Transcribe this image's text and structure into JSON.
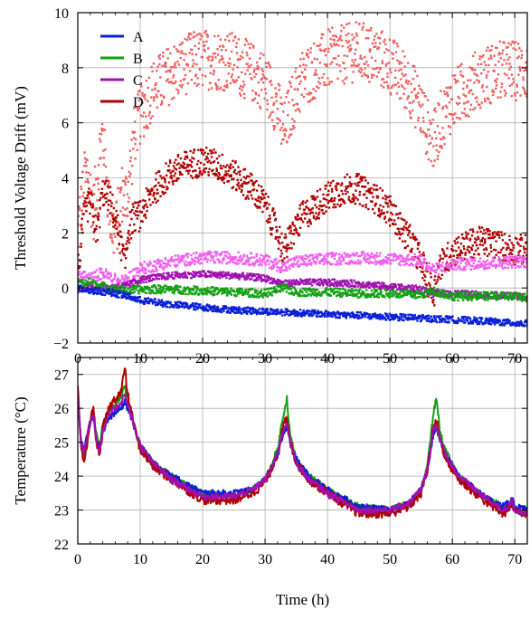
{
  "chart_data": [
    {
      "type": "scatter",
      "title": "",
      "xlabel": "",
      "ylabel": "Threshold Voltage Drift (mV)",
      "xlim": [
        0,
        72
      ],
      "ylim": [
        -2,
        10
      ],
      "xticks": [
        "0",
        "10",
        "20",
        "30",
        "40",
        "50",
        "60",
        "70"
      ],
      "yticks": [
        "−2",
        "0",
        "2",
        "4",
        "6",
        "8",
        "10"
      ],
      "grid": true,
      "legend_position": "top-left",
      "legend": [
        "A",
        "B",
        "C",
        "D"
      ],
      "colors": {
        "A": "#0a1fd6",
        "A_light": "#5f6ff2",
        "B": "#12a012",
        "B_light": "#70d070",
        "C": "#a010b0",
        "C_light": "#f060f0",
        "D": "#b00000",
        "D_light": "#f06060"
      },
      "series": [
        {
          "name": "A",
          "x": [
            0,
            2,
            5,
            8,
            10,
            15,
            20,
            25,
            30,
            35,
            40,
            45,
            50,
            55,
            60,
            65,
            70,
            72
          ],
          "y": [
            0,
            -0.1,
            -0.15,
            -0.3,
            -0.45,
            -0.6,
            -0.7,
            -0.8,
            -0.85,
            -0.9,
            -0.95,
            -1.0,
            -1.05,
            -1.1,
            -1.15,
            -1.2,
            -1.28,
            -1.3
          ],
          "band": 0.12
        },
        {
          "name": "B",
          "x": [
            0,
            2,
            5,
            8,
            10,
            15,
            20,
            25,
            30,
            33,
            35,
            40,
            45,
            50,
            55,
            57,
            60,
            65,
            70,
            72
          ],
          "y": [
            0.15,
            0.2,
            0.0,
            -0.1,
            -0.05,
            -0.05,
            -0.1,
            -0.15,
            -0.2,
            0.0,
            -0.15,
            -0.15,
            -0.2,
            -0.2,
            -0.25,
            -0.1,
            -0.3,
            -0.3,
            -0.3,
            -0.35
          ],
          "band": 0.15
        },
        {
          "name": "C",
          "x": [
            0,
            1,
            2,
            3,
            4,
            5,
            6,
            7,
            8,
            9,
            10,
            12,
            15,
            18,
            20,
            25,
            30,
            33,
            35,
            40,
            45,
            50,
            55,
            57,
            60,
            65,
            70,
            72
          ],
          "y": [
            0.35,
            0.45,
            0.3,
            0.45,
            0.55,
            0.4,
            0.3,
            0.2,
            0.35,
            0.5,
            0.7,
            0.8,
            0.95,
            1.05,
            1.1,
            1.1,
            1.0,
            0.75,
            0.95,
            1.05,
            1.1,
            1.05,
            1.0,
            0.65,
            0.85,
            0.9,
            0.95,
            0.95
          ],
          "band": 0.22
        },
        {
          "name": "D",
          "x": [
            0,
            1,
            1.5,
            2,
            2.5,
            3,
            3.5,
            4,
            4.5,
            5,
            5.5,
            6,
            6.5,
            7,
            7.5,
            8,
            9,
            10,
            12,
            15,
            18,
            20,
            22,
            25,
            28,
            30,
            32,
            33,
            34,
            36,
            40,
            43,
            45,
            48,
            50,
            53,
            55,
            56,
            57,
            58,
            60,
            63,
            65,
            68,
            70,
            72
          ],
          "y": [
            2.0,
            3.8,
            4.3,
            3.5,
            2.8,
            3.8,
            5.0,
            5.6,
            4.2,
            3.0,
            2.2,
            2.0,
            2.6,
            3.5,
            3.2,
            3.5,
            5.5,
            6.3,
            7.2,
            7.8,
            8.2,
            8.3,
            8.3,
            8.2,
            7.8,
            7.5,
            6.6,
            5.6,
            6.5,
            7.6,
            8.3,
            8.5,
            8.6,
            8.4,
            8.1,
            7.4,
            6.5,
            5.8,
            5.3,
            6.0,
            6.8,
            7.4,
            7.7,
            7.9,
            7.9,
            7.9
          ],
          "band": 1.1
        }
      ],
      "lower_series": [
        {
          "name": "C",
          "x": [
            0,
            2,
            5,
            8,
            10,
            15,
            20,
            25,
            30,
            33,
            35,
            40,
            45,
            50,
            55,
            57,
            60,
            65,
            70,
            72
          ],
          "y": [
            -0.05,
            0.05,
            0.0,
            0.1,
            0.3,
            0.45,
            0.5,
            0.45,
            0.35,
            0.15,
            0.2,
            0.2,
            0.15,
            0.05,
            -0.05,
            -0.2,
            -0.2,
            -0.25,
            -0.3,
            -0.35
          ],
          "band": 0.12
        },
        {
          "name": "D",
          "x": [
            0,
            1,
            2,
            3,
            4,
            5,
            6,
            7,
            7.5,
            8,
            9,
            10,
            12,
            15,
            18,
            20,
            22,
            25,
            28,
            30,
            32,
            33,
            34,
            36,
            40,
            43,
            45,
            48,
            50,
            53,
            55,
            56,
            57,
            58,
            60,
            63,
            65,
            68,
            70,
            72
          ],
          "y": [
            0.5,
            2.6,
            3.2,
            2.0,
            3.5,
            3.3,
            2.5,
            1.5,
            0.8,
            2.0,
            2.6,
            2.6,
            3.5,
            4.2,
            4.5,
            4.6,
            4.5,
            4.1,
            3.6,
            3.0,
            2.0,
            1.3,
            1.8,
            2.6,
            3.3,
            3.6,
            3.6,
            3.2,
            2.8,
            1.8,
            1.0,
            0.3,
            -0.2,
            0.8,
            1.3,
            1.6,
            1.7,
            1.5,
            1.4,
            1.4
          ],
          "band": 0.55
        }
      ]
    },
    {
      "type": "line",
      "title": "",
      "xlabel": "Time (h)",
      "ylabel": "Temperature (°C)",
      "xlim": [
        0,
        72
      ],
      "ylim": [
        22,
        27.5
      ],
      "xticks": [
        "0",
        "10",
        "20",
        "30",
        "40",
        "50",
        "60",
        "70"
      ],
      "yticks": [
        "22",
        "23",
        "24",
        "25",
        "26",
        "27"
      ],
      "grid": true,
      "series": [
        {
          "name": "B",
          "x": [
            0,
            0.5,
            1,
            1.5,
            2,
            2.5,
            3,
            3.5,
            4,
            5,
            6,
            7,
            7.5,
            8,
            9,
            10,
            12,
            15,
            20,
            25,
            28,
            30,
            31,
            32,
            33,
            33.5,
            34,
            35,
            37,
            40,
            45,
            50,
            53,
            55,
            56,
            57,
            57.5,
            58,
            59,
            61,
            65,
            68,
            69,
            69.5,
            70,
            72
          ],
          "y": [
            26.5,
            25.0,
            24.6,
            25.2,
            25.6,
            25.9,
            25.2,
            24.8,
            25.5,
            25.9,
            26.1,
            26.4,
            26.6,
            26.2,
            25.5,
            24.9,
            24.4,
            24.0,
            23.5,
            23.4,
            23.6,
            23.9,
            24.3,
            24.8,
            25.9,
            26.3,
            25.2,
            24.5,
            24.0,
            23.6,
            23.1,
            23.0,
            23.2,
            23.6,
            24.3,
            25.9,
            26.3,
            25.3,
            24.7,
            24.0,
            23.4,
            23.1,
            23.1,
            23.3,
            23.0,
            22.9
          ],
          "band": 0.1
        },
        {
          "name": "A",
          "x": [
            0,
            0.5,
            1,
            1.5,
            2,
            2.5,
            3,
            3.5,
            4,
            5,
            6,
            7,
            7.5,
            8,
            9,
            10,
            12,
            15,
            20,
            25,
            28,
            30,
            31,
            32,
            33,
            33.5,
            34,
            35,
            37,
            40,
            45,
            50,
            53,
            55,
            56,
            57,
            57.5,
            58,
            59,
            61,
            65,
            68,
            69,
            69.5,
            70,
            72
          ],
          "y": [
            26.4,
            25.1,
            24.8,
            25.2,
            25.6,
            25.8,
            25.1,
            24.8,
            25.3,
            25.7,
            25.9,
            26.0,
            26.2,
            26.0,
            25.5,
            24.9,
            24.4,
            24.0,
            23.5,
            23.5,
            23.6,
            23.9,
            24.2,
            24.6,
            25.3,
            25.5,
            25.0,
            24.5,
            24.0,
            23.6,
            23.1,
            23.0,
            23.2,
            23.6,
            24.2,
            25.3,
            25.4,
            25.1,
            24.6,
            24.0,
            23.4,
            23.1,
            23.2,
            23.4,
            23.1,
            23.0
          ],
          "band": 0.1
        },
        {
          "name": "D",
          "x": [
            0,
            0.5,
            1,
            1.5,
            2,
            2.5,
            3,
            3.5,
            4,
            5,
            6,
            7,
            7.5,
            8,
            9,
            10,
            12,
            15,
            20,
            25,
            28,
            30,
            31,
            32,
            33,
            33.5,
            34,
            35,
            37,
            40,
            45,
            50,
            53,
            55,
            56,
            57,
            57.5,
            58,
            59,
            61,
            65,
            68,
            69,
            69.5,
            70,
            72
          ],
          "y": [
            26.6,
            24.8,
            24.4,
            25.0,
            25.6,
            26.0,
            25.0,
            24.6,
            25.4,
            26.0,
            26.3,
            26.5,
            27.2,
            26.4,
            25.5,
            24.8,
            24.3,
            23.9,
            23.3,
            23.3,
            23.5,
            23.8,
            24.2,
            24.7,
            25.5,
            25.7,
            25.0,
            24.4,
            23.9,
            23.5,
            22.9,
            22.9,
            23.1,
            23.5,
            24.2,
            25.5,
            25.6,
            25.1,
            24.5,
            23.9,
            23.3,
            22.9,
            23.0,
            23.2,
            23.0,
            22.9
          ],
          "band": 0.14
        },
        {
          "name": "C",
          "x": [
            0,
            0.5,
            1,
            1.5,
            2,
            2.5,
            3,
            3.5,
            4,
            5,
            6,
            7,
            7.5,
            8,
            9,
            10,
            12,
            15,
            20,
            25,
            28,
            30,
            31,
            32,
            33,
            33.5,
            34,
            35,
            37,
            40,
            45,
            50,
            53,
            55,
            56,
            57,
            57.5,
            58,
            59,
            61,
            65,
            68,
            69,
            69.5,
            70,
            72
          ],
          "y": [
            26.5,
            25.0,
            24.7,
            25.2,
            25.6,
            25.8,
            25.1,
            24.7,
            25.3,
            25.8,
            26.0,
            26.2,
            26.4,
            26.1,
            25.5,
            24.9,
            24.4,
            23.9,
            23.4,
            23.4,
            23.6,
            23.9,
            24.2,
            24.7,
            25.4,
            25.6,
            25.0,
            24.4,
            23.9,
            23.5,
            23.0,
            23.0,
            23.2,
            23.6,
            24.2,
            25.4,
            25.5,
            25.1,
            24.6,
            24.0,
            23.4,
            23.0,
            23.1,
            23.3,
            23.0,
            22.9
          ],
          "band": 0.1
        }
      ]
    }
  ]
}
